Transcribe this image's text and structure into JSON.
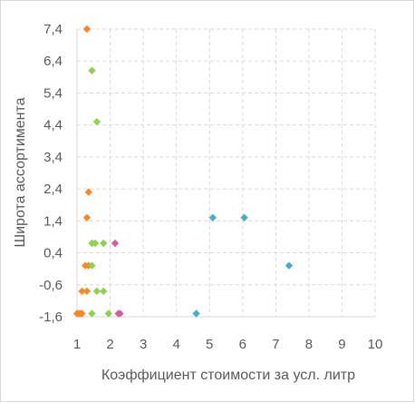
{
  "chart_data": {
    "type": "scatter",
    "title": "",
    "xlabel": "Коэффициент стоимости за усл. литр",
    "ylabel": "Широта  ассортимента",
    "xlim": [
      1,
      10
    ],
    "ylim": [
      -1.6,
      7.4
    ],
    "x_ticks": [
      1,
      2,
      3,
      4,
      5,
      6,
      7,
      8,
      9,
      10
    ],
    "y_ticks": [
      -1.6,
      -0.6,
      0.4,
      1.4,
      2.4,
      3.4,
      4.4,
      5.4,
      6.4,
      7.4
    ],
    "x_tick_labels": [
      "1",
      "2",
      "3",
      "4",
      "5",
      "6",
      "7",
      "8",
      "9",
      "10"
    ],
    "y_tick_labels": [
      "-1,6",
      "-0,6",
      "0,4",
      "1,4",
      "2,4",
      "3,4",
      "4,4",
      "5,4",
      "6,4",
      "7,4"
    ],
    "grid": true,
    "legend": "none",
    "series": [
      {
        "color": "#F58A29",
        "points": [
          [
            1.3,
            7.4
          ],
          [
            1.35,
            2.3
          ],
          [
            1.3,
            1.5
          ],
          [
            1.25,
            0.0
          ],
          [
            1.35,
            0.0
          ],
          [
            1.15,
            -0.8
          ],
          [
            1.3,
            -0.8
          ],
          [
            1.0,
            -1.5
          ],
          [
            1.05,
            -1.5
          ],
          [
            1.1,
            -1.5
          ],
          [
            1.15,
            -1.5
          ]
        ]
      },
      {
        "color": "#92D050",
        "points": [
          [
            1.45,
            6.1
          ],
          [
            1.6,
            4.5
          ],
          [
            1.45,
            0.7
          ],
          [
            1.55,
            0.7
          ],
          [
            1.8,
            0.7
          ],
          [
            1.45,
            0.0
          ],
          [
            1.6,
            -0.8
          ],
          [
            1.8,
            -0.8
          ],
          [
            1.45,
            -1.5
          ],
          [
            1.95,
            -1.5
          ]
        ]
      },
      {
        "color": "#D45FA0",
        "points": [
          [
            2.15,
            0.7
          ],
          [
            2.25,
            -1.5
          ],
          [
            2.3,
            -1.5
          ]
        ]
      },
      {
        "color": "#4BACC6",
        "points": [
          [
            5.1,
            1.5
          ],
          [
            6.05,
            1.5
          ],
          [
            7.4,
            0.0
          ],
          [
            4.6,
            -1.5
          ]
        ]
      }
    ]
  }
}
